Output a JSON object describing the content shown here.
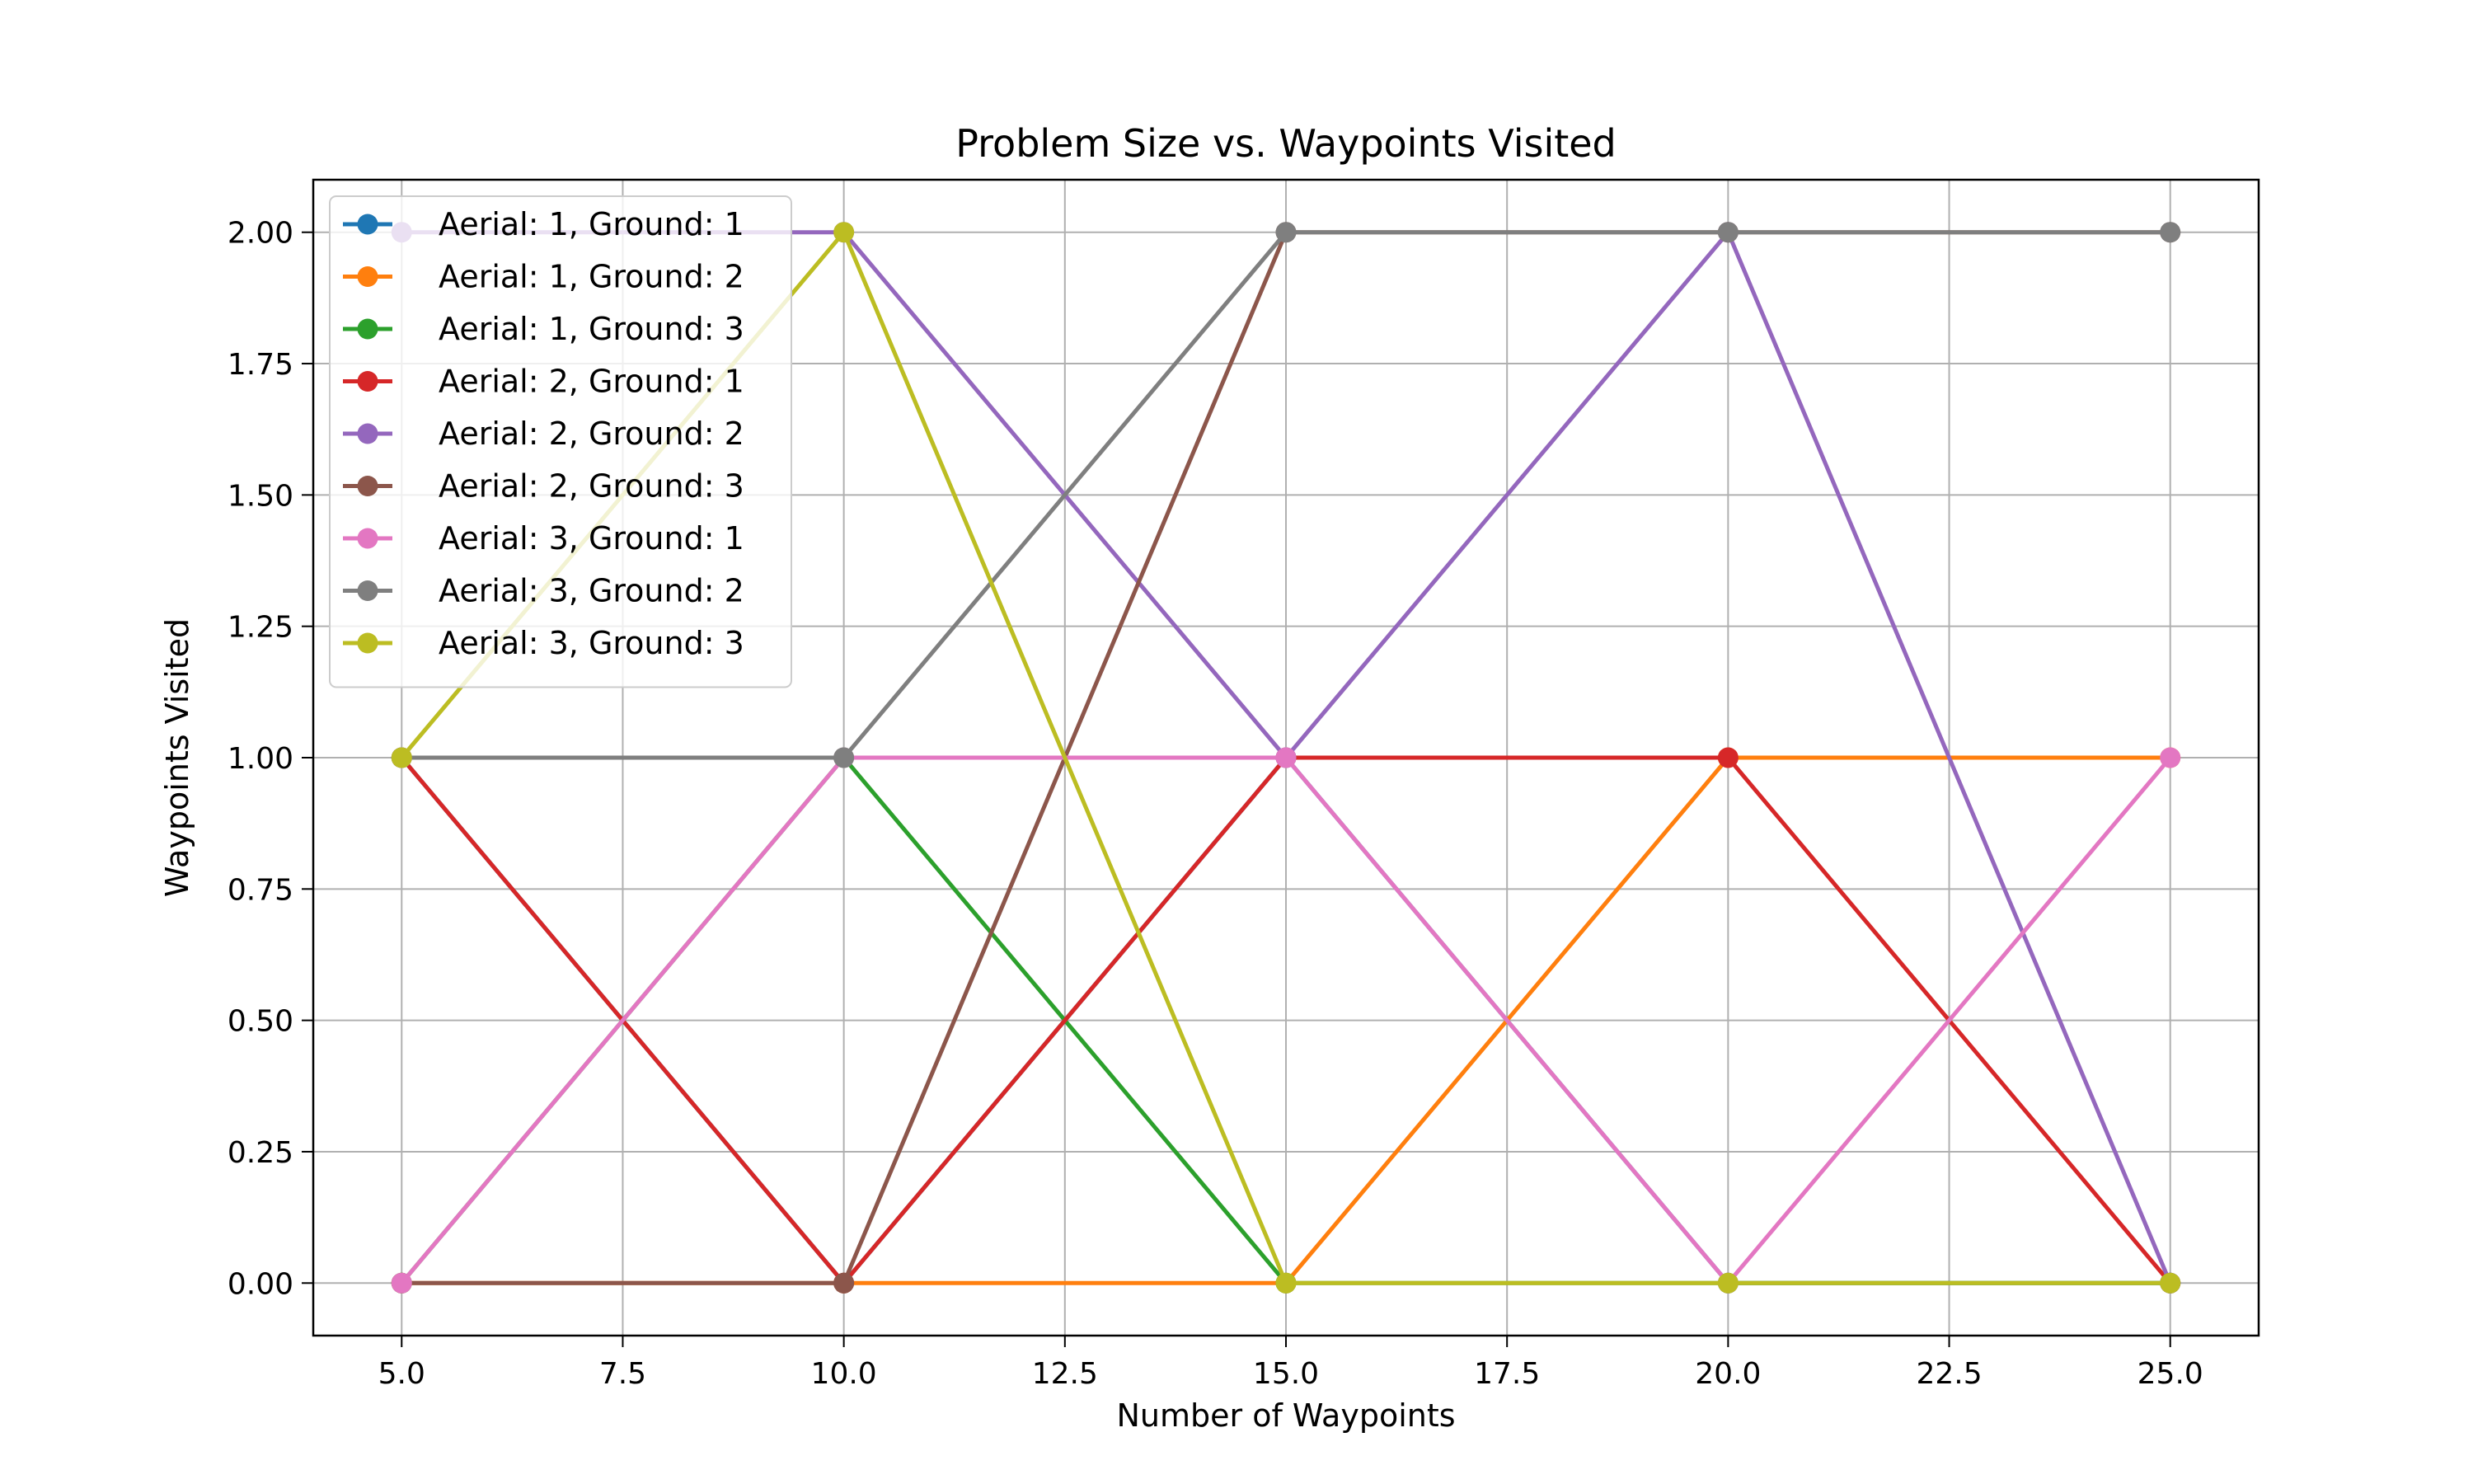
{
  "chart_data": {
    "type": "line",
    "title": "Problem Size vs. Waypoints Visited",
    "xlabel": "Number of Waypoints",
    "ylabel": "Waypoints Visited",
    "x": [
      5,
      10,
      15,
      20,
      25
    ],
    "xlim": [
      4,
      26
    ],
    "ylim": [
      -0.1,
      2.1
    ],
    "xticks": [
      "5.0",
      "7.5",
      "10.0",
      "12.5",
      "15.0",
      "17.5",
      "20.0",
      "22.5",
      "25.0"
    ],
    "yticks": [
      "0.00",
      "0.25",
      "0.50",
      "0.75",
      "1.00",
      "1.25",
      "1.50",
      "1.75",
      "2.00"
    ],
    "grid": true,
    "legend_position": "upper-left",
    "series": [
      {
        "name": "Aerial: 1, Ground: 1",
        "color": "#1f77b4",
        "values": [
          1,
          0,
          1,
          0,
          0
        ]
      },
      {
        "name": "Aerial: 1, Ground: 2",
        "color": "#ff7f0e",
        "values": [
          0,
          0,
          0,
          1,
          1
        ]
      },
      {
        "name": "Aerial: 1, Ground: 3",
        "color": "#2ca02c",
        "values": [
          0,
          1,
          0,
          0,
          0
        ]
      },
      {
        "name": "Aerial: 2, Ground: 1",
        "color": "#d62728",
        "values": [
          1,
          0,
          1,
          1,
          0
        ]
      },
      {
        "name": "Aerial: 2, Ground: 2",
        "color": "#9467bd",
        "values": [
          2,
          2,
          1,
          2,
          0
        ]
      },
      {
        "name": "Aerial: 2, Ground: 3",
        "color": "#8c564b",
        "values": [
          0,
          0,
          2,
          2,
          2
        ]
      },
      {
        "name": "Aerial: 3, Ground: 1",
        "color": "#e377c2",
        "values": [
          0,
          1,
          1,
          0,
          1
        ]
      },
      {
        "name": "Aerial: 3, Ground: 2",
        "color": "#7f7f7f",
        "values": [
          1,
          1,
          2,
          2,
          2
        ]
      },
      {
        "name": "Aerial: 3, Ground: 3",
        "color": "#bcbd22",
        "values": [
          1,
          2,
          0,
          0,
          0
        ]
      }
    ]
  }
}
